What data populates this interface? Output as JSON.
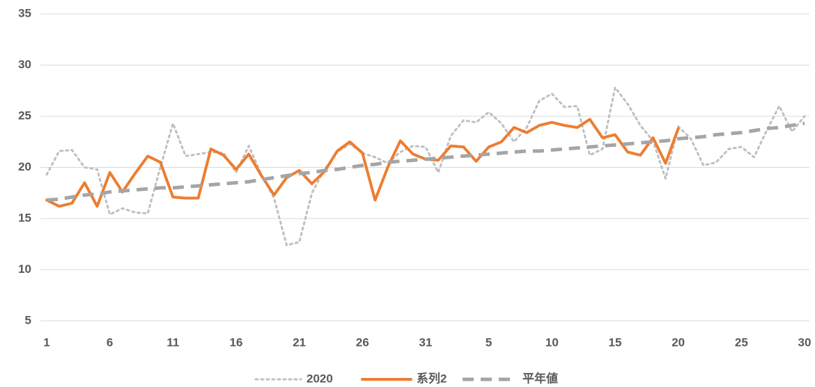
{
  "chart_data": {
    "type": "line",
    "categories": [
      "1",
      null,
      null,
      null,
      null,
      "6",
      null,
      null,
      null,
      null,
      "11",
      null,
      null,
      null,
      null,
      "16",
      null,
      null,
      null,
      null,
      "21",
      null,
      null,
      null,
      null,
      "26",
      null,
      null,
      null,
      null,
      "31",
      null,
      null,
      null,
      null,
      "5",
      null,
      null,
      null,
      null,
      "10",
      null,
      null,
      null,
      null,
      "15",
      null,
      null,
      null,
      null,
      "20",
      null,
      null,
      null,
      null,
      "25",
      null,
      null,
      null,
      null,
      "30"
    ],
    "series": [
      {
        "name": "2020",
        "color": "#bfbfbf",
        "dash": "dot",
        "values": [
          19.3,
          21.6,
          21.7,
          20.0,
          19.8,
          15.4,
          16.0,
          15.6,
          15.5,
          20.0,
          24.3,
          21.1,
          21.3,
          21.5,
          21.4,
          19.5,
          22.1,
          19.3,
          17.0,
          12.4,
          12.7,
          17.5,
          19.8,
          21.5,
          22.3,
          21.4,
          21.0,
          20.4,
          21.5,
          22.1,
          22.0,
          19.5,
          23.1,
          24.6,
          24.4,
          25.4,
          24.3,
          22.5,
          23.9,
          26.5,
          27.2,
          25.9,
          26.0,
          21.2,
          21.8,
          27.8,
          26.2,
          24.1,
          22.6,
          18.9,
          24.0,
          22.8,
          20.2,
          20.5,
          21.8,
          22.0,
          21.0,
          23.6,
          26.0,
          23.5,
          25.0
        ]
      },
      {
        "name": "系列2",
        "color": "#ed7d31",
        "dash": "solid",
        "values": [
          16.8,
          16.2,
          16.5,
          18.5,
          16.2,
          19.5,
          17.6,
          19.4,
          21.1,
          20.5,
          17.1,
          17.0,
          17.0,
          21.8,
          21.2,
          19.8,
          21.3,
          19.2,
          17.3,
          19.0,
          19.7,
          18.4,
          19.6,
          21.6,
          22.5,
          21.4,
          16.8,
          20.0,
          22.6,
          21.3,
          20.8,
          20.7,
          22.1,
          22.0,
          20.6,
          22.0,
          22.5,
          23.9,
          23.4,
          24.1,
          24.4,
          24.1,
          23.9,
          24.7,
          22.9,
          23.2,
          21.5,
          21.2,
          22.9,
          20.4,
          23.8,
          null,
          null,
          null,
          null,
          null,
          null,
          null,
          null,
          null,
          null
        ]
      },
      {
        "name": "平年値",
        "color": "#a5a5a5",
        "dash": "dash",
        "values": [
          16.8,
          16.9,
          17.1,
          17.3,
          17.4,
          17.6,
          17.7,
          17.8,
          17.9,
          18.0,
          18.0,
          18.1,
          18.2,
          18.3,
          18.4,
          18.5,
          18.6,
          18.8,
          19.0,
          19.2,
          19.4,
          19.5,
          19.7,
          19.8,
          20.0,
          20.2,
          20.3,
          20.5,
          20.6,
          20.7,
          20.8,
          20.9,
          21.0,
          21.1,
          21.2,
          21.3,
          21.4,
          21.5,
          21.6,
          21.6,
          21.7,
          21.8,
          21.9,
          22.0,
          22.1,
          22.2,
          22.3,
          22.4,
          22.5,
          22.6,
          22.8,
          22.9,
          23.0,
          23.2,
          23.3,
          23.4,
          23.6,
          23.8,
          23.9,
          24.1,
          24.3
        ]
      }
    ],
    "ylim": [
      5,
      35
    ],
    "yticks": [
      5,
      10,
      15,
      20,
      25,
      30,
      35
    ],
    "grid": true,
    "legend": "bottom"
  }
}
